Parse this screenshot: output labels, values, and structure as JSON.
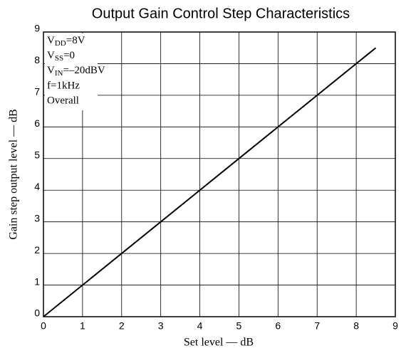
{
  "chart_data": {
    "type": "line",
    "title": "Output Gain Control Step Characteristics",
    "x_label": "Set level — dB",
    "y_label": "Gain step output level — dB",
    "annotations": [
      [
        "V",
        "DD",
        "=8V"
      ],
      [
        "V",
        "SS",
        "=0"
      ],
      [
        "V",
        "IN",
        "=–20dBV"
      ],
      "f=1kHz",
      "Overall"
    ],
    "x": [
      0,
      8.5
    ],
    "series": [
      {
        "name": "Overall",
        "color": "#000000",
        "values": [
          0,
          8.5
        ]
      }
    ],
    "xlim": [
      0,
      9
    ],
    "xticks": [
      0,
      1,
      2,
      3,
      4,
      5,
      6,
      7,
      8,
      9
    ],
    "ylim": [
      0,
      9
    ],
    "yticks": [
      0,
      1,
      2,
      3,
      4,
      5,
      6,
      7,
      8,
      9
    ],
    "grid": true
  }
}
